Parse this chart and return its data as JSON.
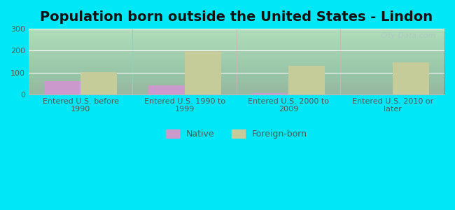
{
  "title": "Population born outside the United States - Lindon",
  "categories": [
    "Entered U.S. before\n1990",
    "Entered U.S. 1990 to\n1999",
    "Entered U.S. 2000 to\n2009",
    "Entered U.S. 2010 or\nlater"
  ],
  "native_values": [
    60,
    42,
    5,
    0
  ],
  "foreign_values": [
    103,
    199,
    130,
    145
  ],
  "native_color": "#cc99cc",
  "foreign_color": "#c5cc99",
  "background_outer": "#00e8f8",
  "ylim": [
    0,
    300
  ],
  "yticks": [
    0,
    100,
    200,
    300
  ],
  "bar_width": 0.35,
  "watermark": "City-Data.com",
  "title_fontsize": 14,
  "axis_label_fontsize": 8,
  "legend_fontsize": 9,
  "bg_top_color": "#e8f5e9",
  "bg_bottom_color": "#c8efc8"
}
